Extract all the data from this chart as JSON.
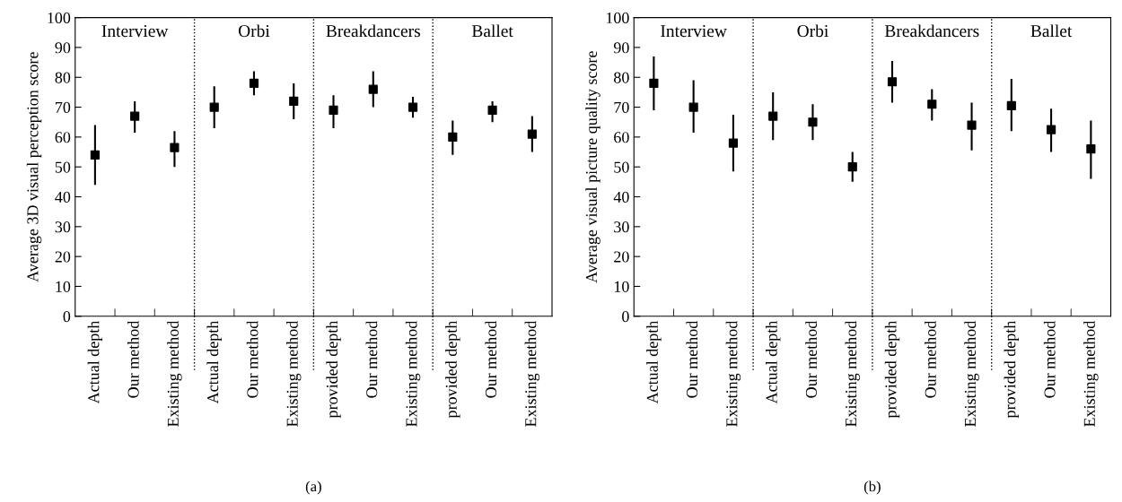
{
  "chart_data": [
    {
      "type": "scatter",
      "title": "(a)",
      "ylabel": "Average 3D visual perception score",
      "categories": [
        "Actual depth",
        "Our method",
        "Existing method",
        "Actual depth",
        "Our method",
        "Existing method",
        "provided depth",
        "Our method",
        "Existing method",
        "provided depth",
        "Our method",
        "Existing method"
      ],
      "series": [
        {
          "color": "#000000",
          "values": [
            54,
            67,
            56.5,
            70,
            78,
            72,
            69,
            76,
            70,
            60,
            69,
            61
          ],
          "errors": [
            [
              44,
              64
            ],
            [
              61.5,
              72
            ],
            [
              50,
              62
            ],
            [
              63,
              77
            ],
            [
              74,
              82
            ],
            [
              66,
              78
            ],
            [
              63,
              74
            ],
            [
              70,
              82
            ],
            [
              66.5,
              73.5
            ],
            [
              54,
              65.5
            ],
            [
              65,
              72
            ],
            [
              55,
              67
            ]
          ]
        }
      ],
      "ylim": [
        0,
        100
      ],
      "yticks": [
        0,
        10,
        20,
        30,
        40,
        50,
        60,
        70,
        80,
        90,
        100
      ],
      "marker": "square",
      "grid": false,
      "annotations": [
        "Interview",
        "Orbi",
        "Breakdancers",
        "Ballet"
      ]
    },
    {
      "type": "scatter",
      "title": "(b)",
      "ylabel": "Average visual picture quality score",
      "categories": [
        "Actual depth",
        "Our method",
        "Existing method",
        "Actual depth",
        "Our method",
        "Existing method",
        "provided depth",
        "Our method",
        "Existing method",
        "provided depth",
        "Our method",
        "Existing method"
      ],
      "series": [
        {
          "color": "#000000",
          "values": [
            78,
            70,
            58,
            67,
            65,
            50,
            78.5,
            71,
            64,
            70.5,
            62.5,
            56
          ],
          "errors": [
            [
              69,
              87
            ],
            [
              61.5,
              79
            ],
            [
              48.5,
              67.5
            ],
            [
              59,
              75
            ],
            [
              59,
              71
            ],
            [
              45,
              55
            ],
            [
              71.5,
              85.5
            ],
            [
              65.5,
              76
            ],
            [
              55.5,
              71.5
            ],
            [
              62,
              79.5
            ],
            [
              55,
              69.5
            ],
            [
              46,
              65.5
            ]
          ]
        }
      ],
      "ylim": [
        0,
        100
      ],
      "yticks": [
        0,
        10,
        20,
        30,
        40,
        50,
        60,
        70,
        80,
        90,
        100
      ],
      "marker": "square",
      "grid": false,
      "annotations": [
        "Interview",
        "Orbi",
        "Breakdancers",
        "Ballet"
      ]
    }
  ]
}
